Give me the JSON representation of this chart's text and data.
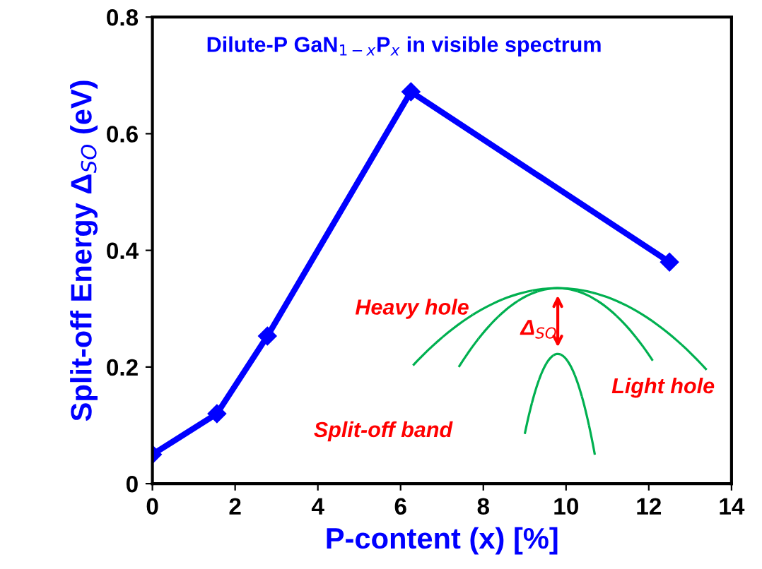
{
  "chart_data": {
    "type": "line",
    "title": "Dilute-P GaN$_{1−x}$P$_{x}$ in visible spectrum",
    "xlabel": "P-content (x) [%]",
    "ylabel": "Split-off Energy Δ$_{SO}$ (eV)",
    "x": [
      0,
      1.56,
      2.78,
      6.25,
      12.5
    ],
    "series": [
      {
        "color": "#0000ff",
        "values": [
          0.05,
          0.12,
          0.253,
          0.672,
          0.38
        ]
      }
    ],
    "xlim": [
      0,
      14
    ],
    "xticks": [
      0,
      2,
      4,
      6,
      8,
      10,
      12,
      14
    ],
    "ylim": [
      0,
      0.8
    ],
    "yticks": [
      0,
      0.2,
      0.4,
      0.6,
      0.8
    ],
    "marker": "diamond",
    "line_style": "solid",
    "grid": false,
    "legend": false,
    "annotations": [
      "Heavy hole",
      "Light hole",
      "Split-off band",
      "Δ$_{SO}$"
    ]
  }
}
